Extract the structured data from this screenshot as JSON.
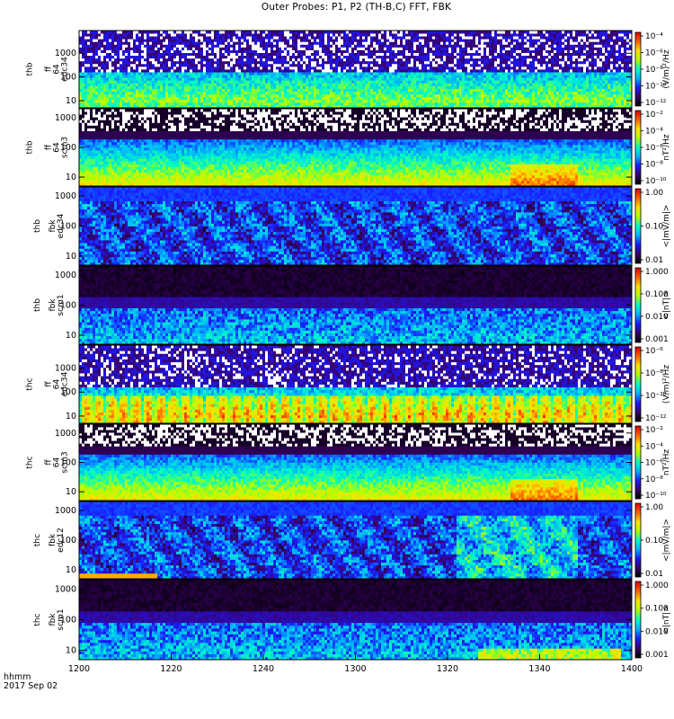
{
  "title": "Outer Probes: P1, P2 (TH-B,C) FFT, FBK",
  "footer": {
    "time_unit": "hhmm",
    "date": "2017 Sep 02"
  },
  "chart_data": {
    "type": "heatmap",
    "title": "Outer Probes: P1, P2 (TH-B,C) FFT, FBK",
    "x": {
      "ticks": [
        "1200",
        "1220",
        "1240",
        "1300",
        "1320",
        "1340",
        "1400"
      ],
      "range": [
        1200,
        1400
      ],
      "unit_label": "hhmm",
      "date": "2017 Sep 02"
    },
    "panels": [
      {
        "ylabel": [
          "thb",
          "ff",
          "64",
          "edc34"
        ],
        "y_scale": "log",
        "y_ticks": [
          "10",
          "100",
          "1000"
        ],
        "colorbar_label": "(V/m)²/Hz",
        "colorbar_ticks": [
          "10⁻⁴",
          "10⁻⁶",
          "10⁻⁸",
          "10⁻¹⁰",
          "10⁻¹²"
        ],
        "colorbar_range": [
          "1e-12",
          "1e-4"
        ]
      },
      {
        "ylabel": [
          "thb",
          "ff",
          "64",
          "scm3"
        ],
        "y_scale": "log",
        "y_ticks": [
          "10",
          "100",
          "1000"
        ],
        "colorbar_label": "nT²/Hz",
        "colorbar_ticks": [
          "10⁻²",
          "10⁻⁴",
          "10⁻⁶",
          "10⁻⁸",
          "10⁻¹⁰"
        ],
        "colorbar_range": [
          "1e-10",
          "1e-2"
        ]
      },
      {
        "ylabel": [
          "thb",
          "fbk",
          "edc34"
        ],
        "y_scale": "log",
        "y_ticks": [
          "10",
          "100",
          "1000"
        ],
        "colorbar_label": "<|mV/m|>",
        "colorbar_ticks": [
          "1.00",
          "0.10",
          "0.01"
        ],
        "colorbar_range": [
          "0.01",
          "1.00"
        ]
      },
      {
        "ylabel": [
          "thb",
          "fbk",
          "scm1"
        ],
        "y_scale": "log",
        "y_ticks": [
          "10",
          "100",
          "1000"
        ],
        "colorbar_label": "<|nT|>",
        "colorbar_ticks": [
          "1.000",
          "0.100",
          "0.010",
          "0.001"
        ],
        "colorbar_range": [
          "0.001",
          "1.000"
        ]
      },
      {
        "ylabel": [
          "thc",
          "ff",
          "64",
          "edc34"
        ],
        "y_scale": "log",
        "y_ticks": [
          "10",
          "100",
          "1000"
        ],
        "colorbar_label": "(V/m)²/Hz",
        "colorbar_ticks": [
          "10⁻⁶",
          "10⁻⁸",
          "10⁻¹⁰",
          "10⁻¹²"
        ],
        "colorbar_range": [
          "1e-12",
          "1e-5"
        ]
      },
      {
        "ylabel": [
          "thc",
          "ff",
          "64",
          "scm3"
        ],
        "y_scale": "log",
        "y_ticks": [
          "10",
          "100",
          "1000"
        ],
        "colorbar_label": "nT²/Hz",
        "colorbar_ticks": [
          "10⁻²",
          "10⁻⁴",
          "10⁻⁶",
          "10⁻⁸",
          "10⁻¹⁰"
        ],
        "colorbar_range": [
          "1e-10",
          "1e-2"
        ]
      },
      {
        "ylabel": [
          "thc",
          "fbk",
          "edc12"
        ],
        "y_scale": "log",
        "y_ticks": [
          "10",
          "100",
          "1000"
        ],
        "colorbar_label": "<|mV/m|>",
        "colorbar_ticks": [
          "1.00",
          "0.10",
          "0.01"
        ],
        "colorbar_range": [
          "0.01",
          "1.00"
        ]
      },
      {
        "ylabel": [
          "thc",
          "fbk",
          "scm1"
        ],
        "y_scale": "log",
        "y_ticks": [
          "10",
          "100",
          "1000"
        ],
        "colorbar_label": "<|nT|>",
        "colorbar_ticks": [
          "1.000",
          "0.100",
          "0.010",
          "0.001"
        ],
        "colorbar_range": [
          "0.001",
          "1.000"
        ]
      }
    ],
    "colormap": [
      "#000000",
      "#3a0066",
      "#1a1aff",
      "#00b0ff",
      "#00ffc0",
      "#b0ff00",
      "#ffe000",
      "#ff6000",
      "#e00000"
    ]
  }
}
